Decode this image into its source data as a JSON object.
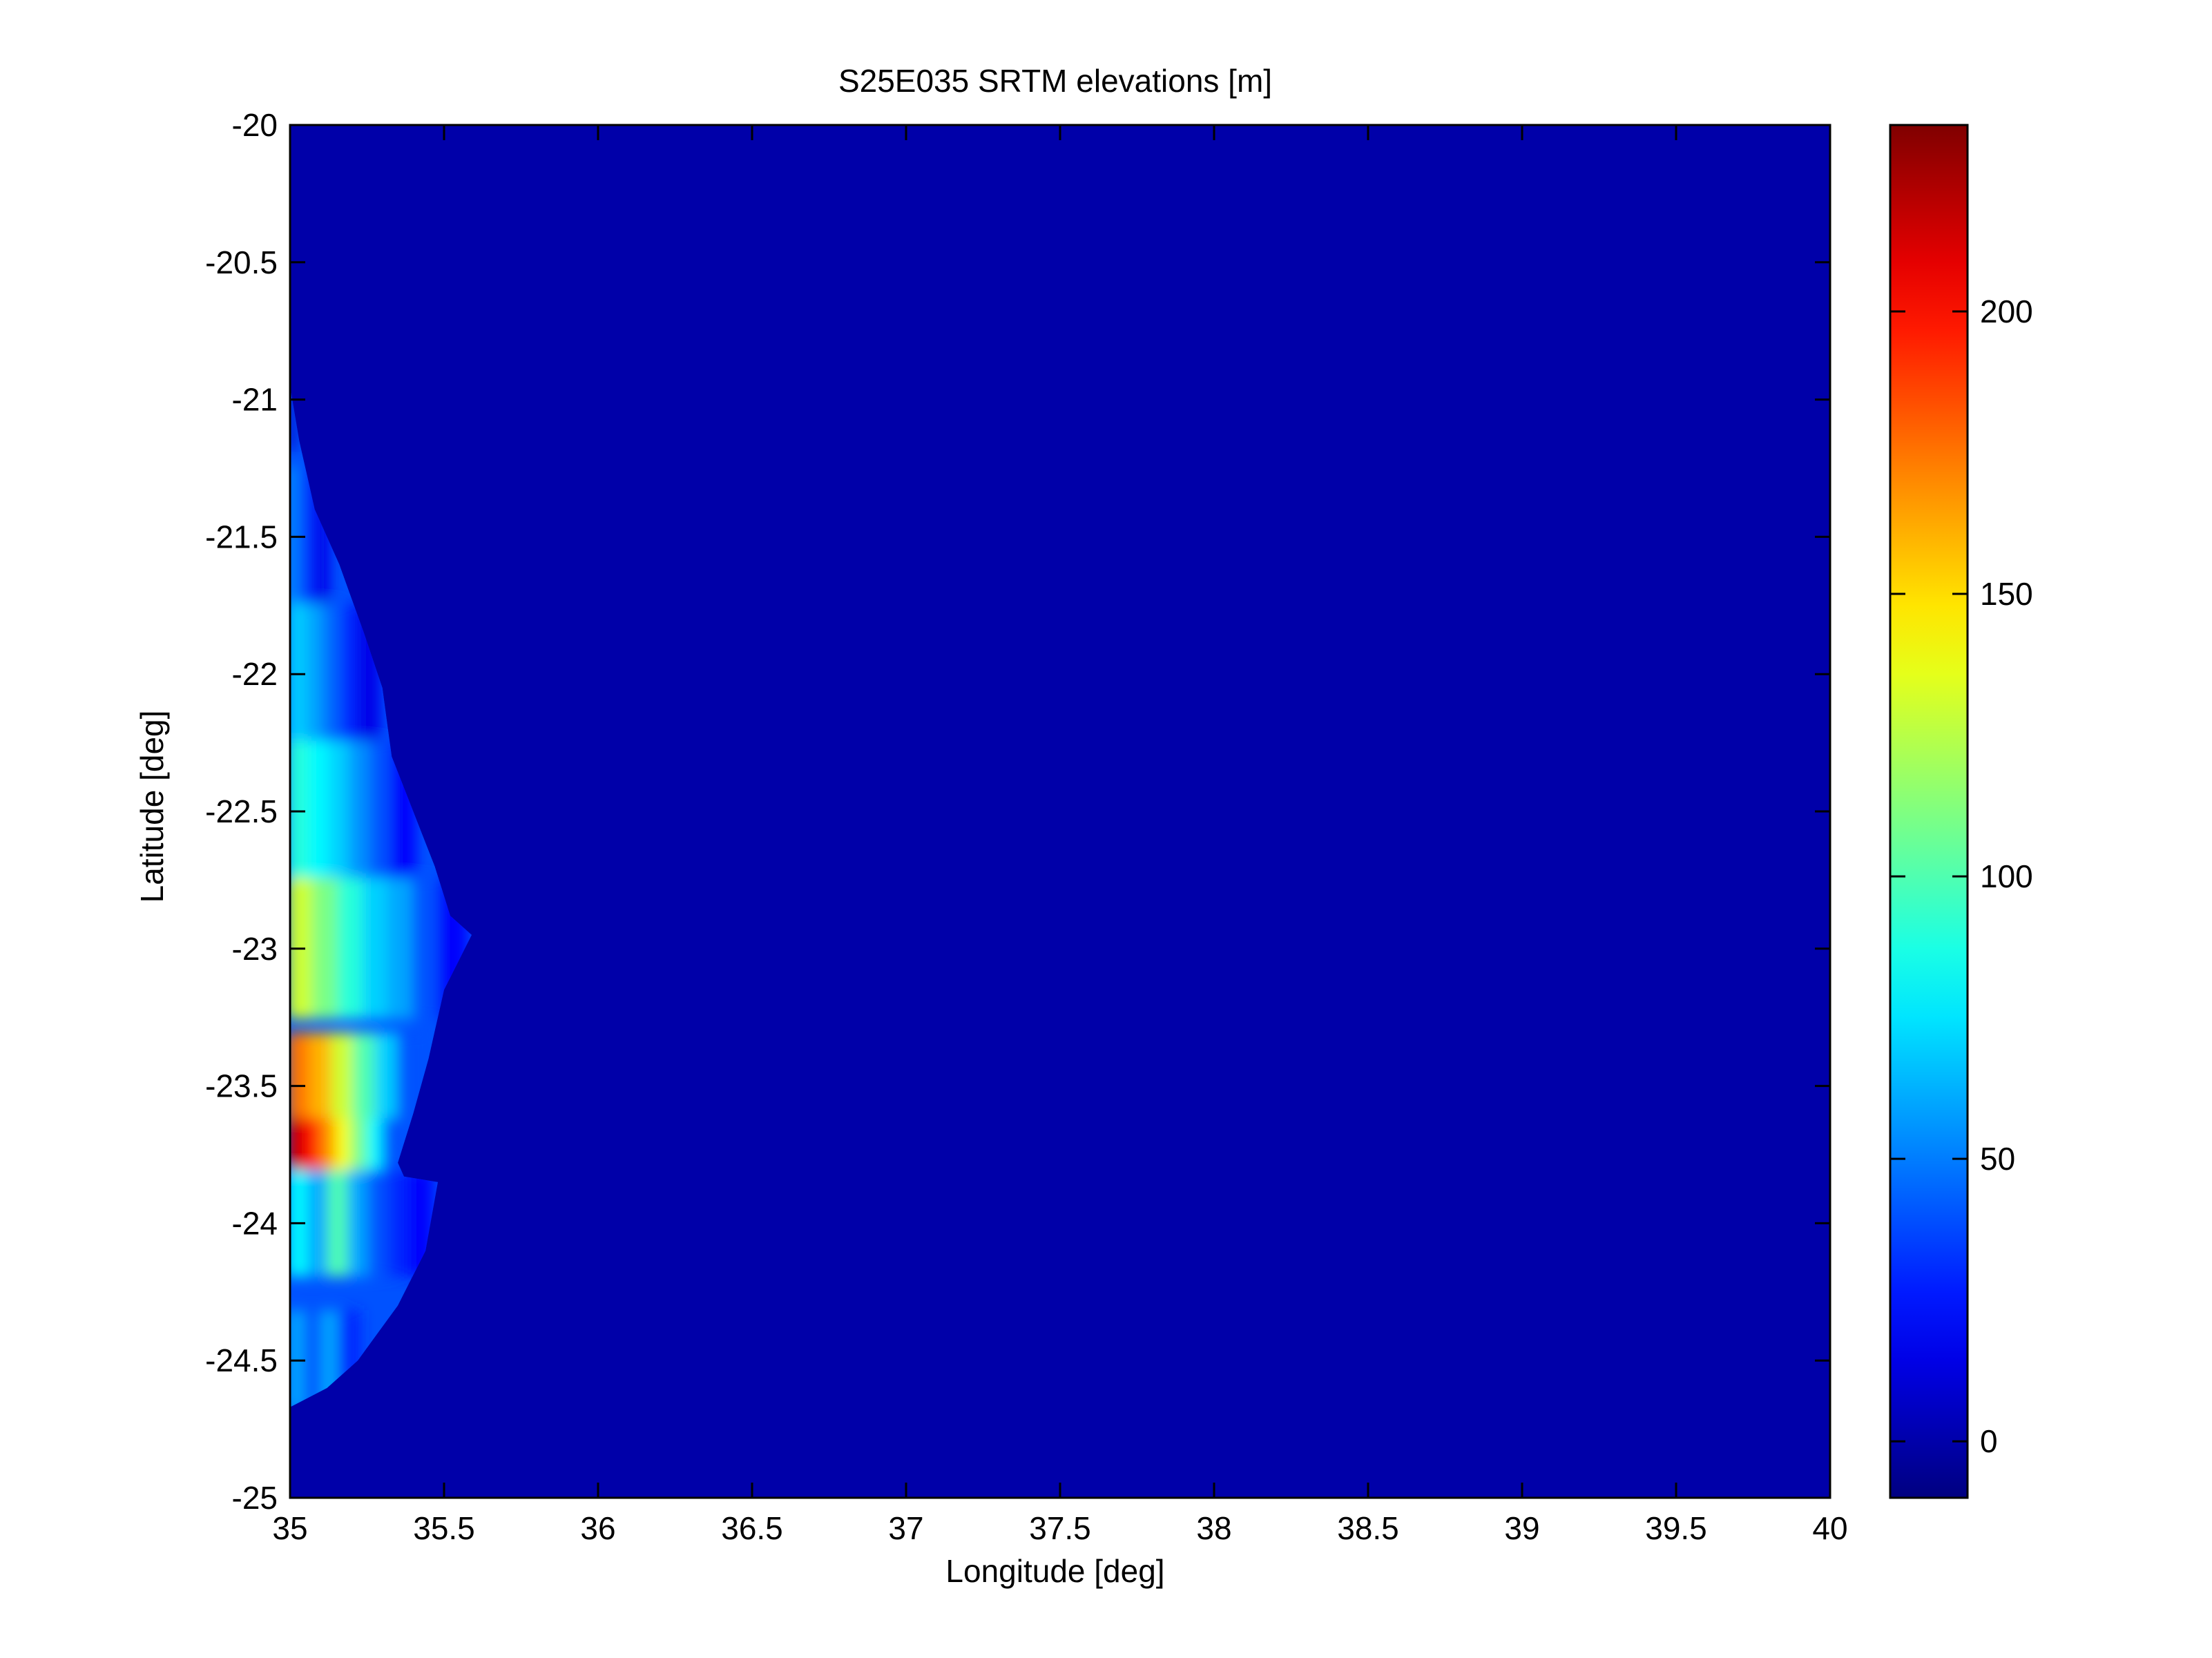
{
  "chart_data": {
    "type": "heatmap",
    "title": "S25E035 SRTM elevations [m]",
    "xlabel": "Longitude [deg]",
    "ylabel": "Latitude [deg]",
    "xlim": [
      35,
      40
    ],
    "ylim": [
      -25,
      -20
    ],
    "x_ticks": [
      "35",
      "35.5",
      "36",
      "36.5",
      "37",
      "37.5",
      "38",
      "38.5",
      "39",
      "39.5",
      "40"
    ],
    "x_tick_values": [
      35,
      35.5,
      36,
      36.5,
      37,
      37.5,
      38,
      38.5,
      39,
      39.5,
      40
    ],
    "y_ticks": [
      "-20",
      "-20.5",
      "-21",
      "-21.5",
      "-22",
      "-22.5",
      "-23",
      "-23.5",
      "-24",
      "-24.5",
      "-25"
    ],
    "y_tick_values": [
      -20,
      -20.5,
      -21,
      -21.5,
      -22,
      -22.5,
      -23,
      -23.5,
      -24,
      -24.5,
      -25
    ],
    "grid": false,
    "colormap": "jet",
    "colorbar": {
      "placement": "right",
      "clim": [
        -10,
        233
      ],
      "ticks": [
        "0",
        "50",
        "100",
        "150",
        "200"
      ],
      "tick_values": [
        0,
        50,
        100,
        150,
        200
      ]
    },
    "background_value": 0,
    "coastline": [
      [
        35.0,
        -20.95
      ],
      [
        35.03,
        -21.15
      ],
      [
        35.08,
        -21.4
      ],
      [
        35.16,
        -21.6
      ],
      [
        35.24,
        -21.85
      ],
      [
        35.3,
        -22.05
      ],
      [
        35.33,
        -22.3
      ],
      [
        35.4,
        -22.5
      ],
      [
        35.47,
        -22.7
      ],
      [
        35.52,
        -22.88
      ],
      [
        35.59,
        -22.95
      ],
      [
        35.5,
        -23.15
      ],
      [
        35.45,
        -23.4
      ],
      [
        35.4,
        -23.6
      ],
      [
        35.35,
        -23.78
      ],
      [
        35.37,
        -23.83
      ],
      [
        35.48,
        -23.85
      ],
      [
        35.44,
        -24.1
      ],
      [
        35.35,
        -24.3
      ],
      [
        35.22,
        -24.5
      ],
      [
        35.12,
        -24.6
      ],
      [
        35.0,
        -24.67
      ]
    ],
    "elevation_profile": [
      {
        "lat": -21.0,
        "values": [
          10,
          5
        ]
      },
      {
        "lat": -21.5,
        "values": [
          55,
          40,
          30,
          15
        ]
      },
      {
        "lat": -22.0,
        "values": [
          70,
          60,
          45,
          30,
          15
        ]
      },
      {
        "lat": -22.5,
        "values": [
          90,
          80,
          70,
          55,
          40,
          20
        ]
      },
      {
        "lat": -23.0,
        "values": [
          130,
          110,
          90,
          70,
          60,
          40,
          20
        ]
      },
      {
        "lat": -23.5,
        "values": [
          175,
          160,
          130,
          100,
          70,
          40
        ]
      },
      {
        "lat": -23.75,
        "values": [
          215,
          200,
          170,
          140,
          110,
          80,
          40
        ]
      },
      {
        "lat": -24.0,
        "values": [
          80,
          60,
          100,
          60,
          40,
          30,
          20
        ]
      },
      {
        "lat": -24.5,
        "values": [
          60,
          40,
          60,
          30
        ]
      }
    ]
  }
}
